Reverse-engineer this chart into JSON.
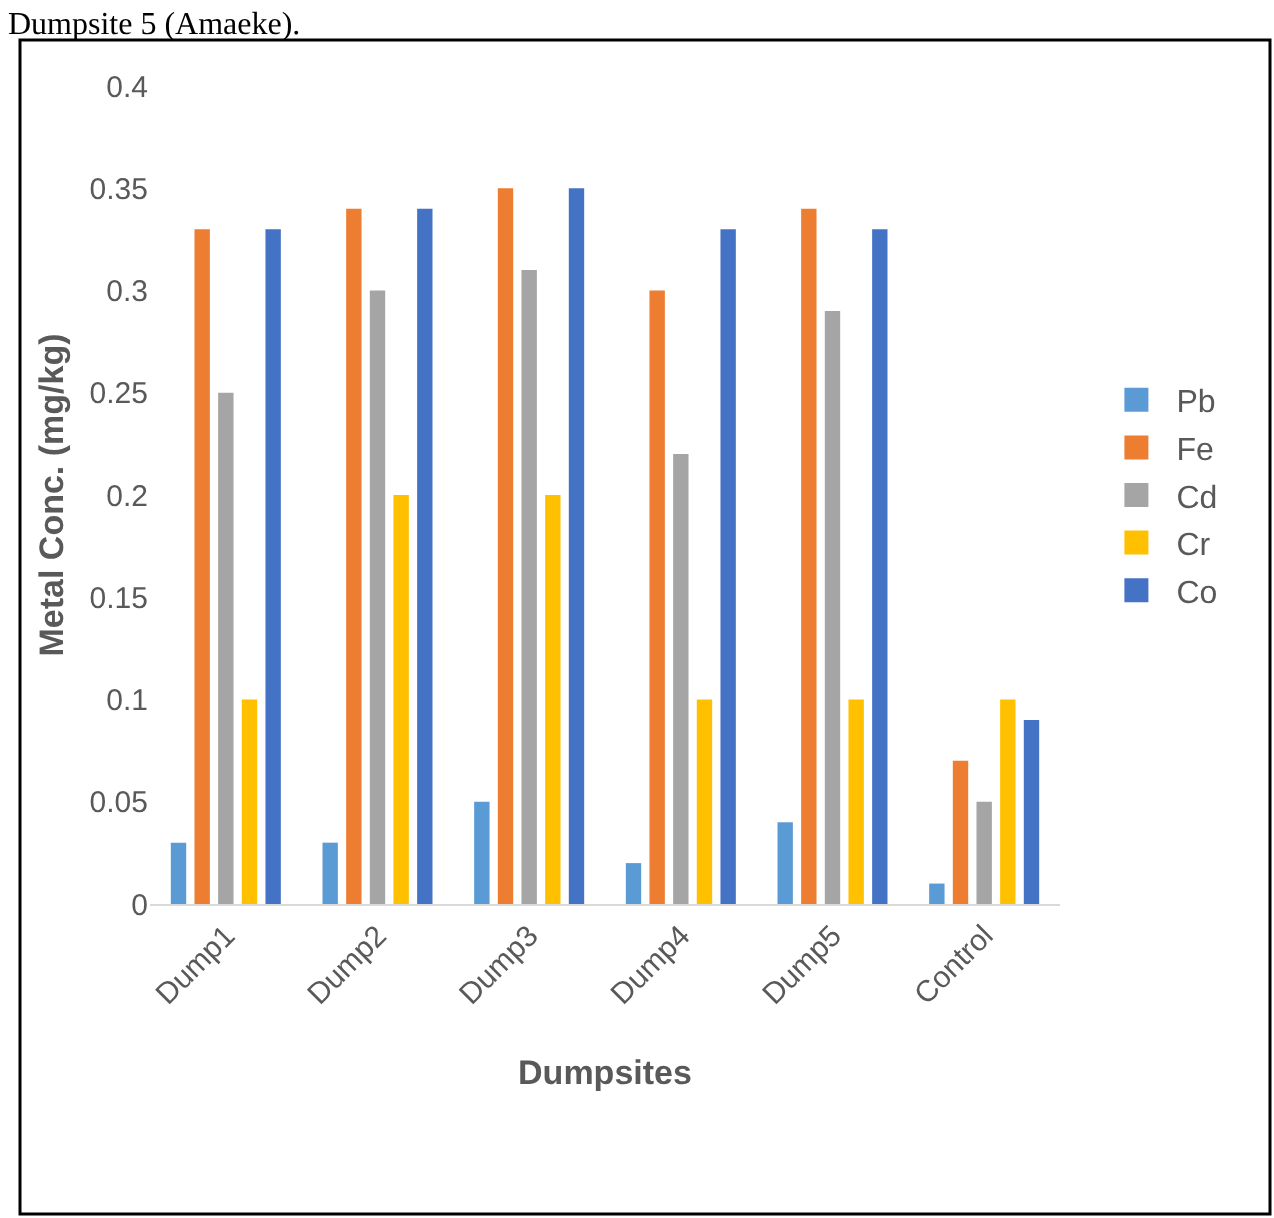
{
  "chart_data": {
    "type": "bar",
    "xlabel": "Dumpsites",
    "ylabel": "Metal Conc. (mg/kg)",
    "annotations": [
      "Dumpsite 5 (Amaeke)."
    ],
    "categories": [
      "Dump1",
      "Dump2",
      "Dump3",
      "Dump4",
      "Dump5",
      "Control"
    ],
    "series": [
      {
        "name": "Pb",
        "color": "#5b9bd5",
        "values": [
          0.03,
          0.03,
          0.05,
          0.02,
          0.04,
          0.01
        ]
      },
      {
        "name": "Fe",
        "color": "#ed7d31",
        "values": [
          0.33,
          0.34,
          0.35,
          0.3,
          0.34,
          0.07
        ]
      },
      {
        "name": "Cd",
        "color": "#a5a5a5",
        "values": [
          0.25,
          0.3,
          0.31,
          0.22,
          0.29,
          0.05
        ]
      },
      {
        "name": "Cr",
        "color": "#ffc000",
        "values": [
          0.1,
          0.2,
          0.2,
          0.1,
          0.1,
          0.1
        ]
      },
      {
        "name": "Co",
        "color": "#4472c4",
        "values": [
          0.33,
          0.34,
          0.35,
          0.33,
          0.33,
          0.09
        ]
      }
    ],
    "ylim": [
      0,
      0.4
    ],
    "yticks": [
      {
        "value": 0,
        "label": "0"
      },
      0.05,
      0.1,
      0.15,
      0.2,
      0.25,
      0.3,
      0.35,
      0.4
    ],
    "grid": false,
    "legend": "right"
  }
}
